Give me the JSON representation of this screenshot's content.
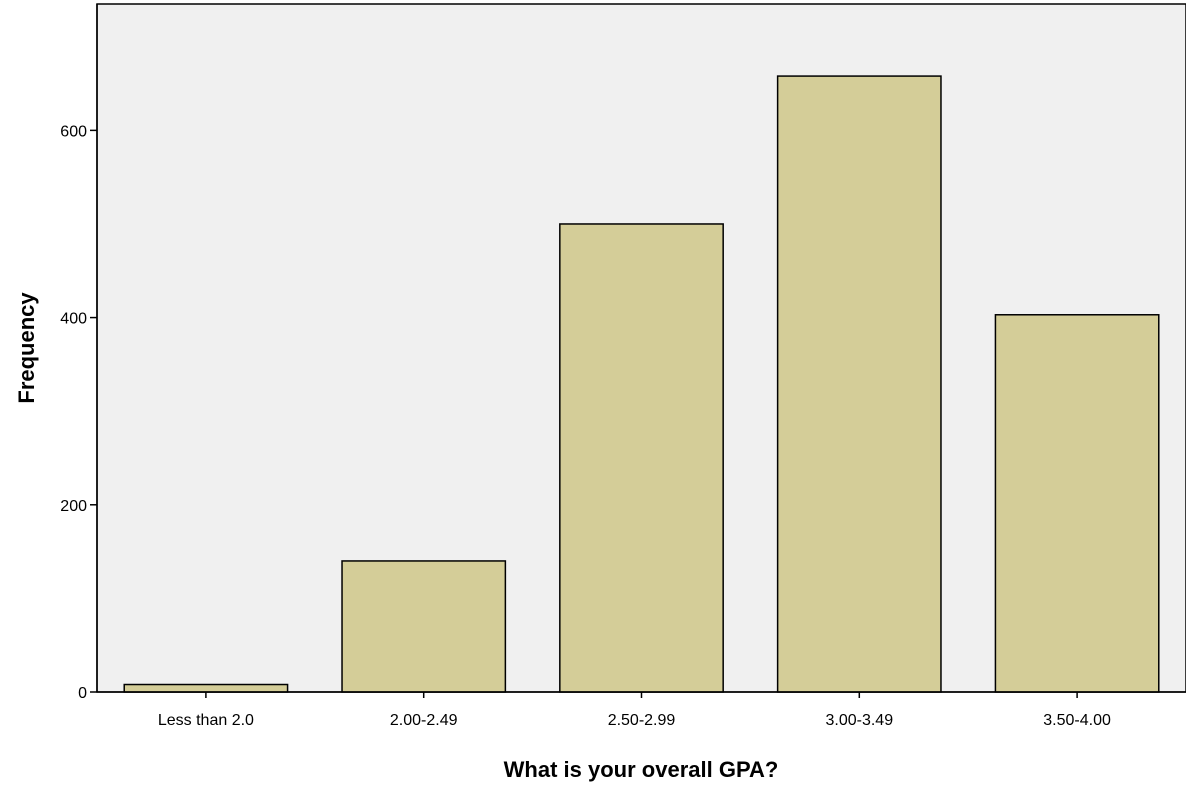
{
  "chart_data": {
    "type": "bar",
    "title": "",
    "xlabel": "What is your overall GPA?",
    "ylabel": "Frequency",
    "categories": [
      "Less than 2.0",
      "2.00-2.49",
      "2.50-2.99",
      "3.00-3.49",
      "3.50-4.00"
    ],
    "values": [
      8,
      140,
      500,
      658,
      403
    ],
    "ylim": [
      0,
      735
    ],
    "yticks": [
      0,
      200,
      400,
      600
    ],
    "ytick_labels": [
      "0",
      "200",
      "400",
      "600"
    ],
    "grid": false,
    "legend": "none",
    "colors": {
      "plot_background": "#f0f0f0",
      "bar_fill": "#d4cd98",
      "bar_stroke": "#000000"
    }
  }
}
